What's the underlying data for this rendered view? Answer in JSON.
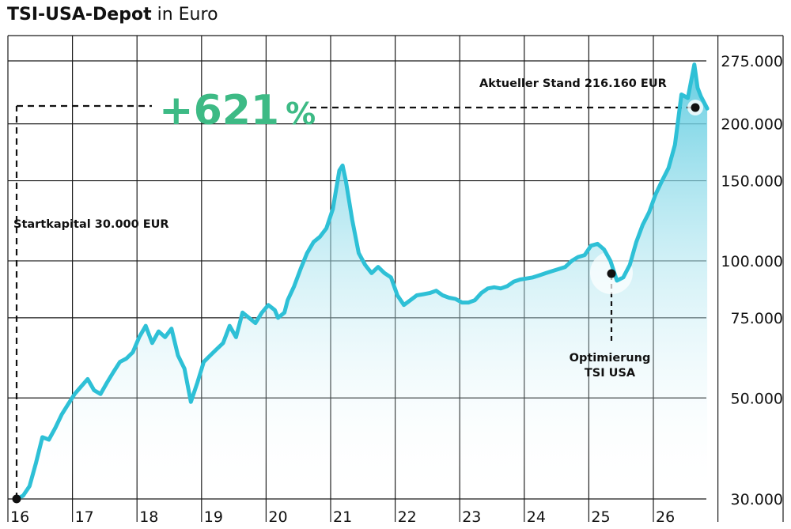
{
  "title": {
    "bold": "TSI-USA-Depot",
    "light": "in Euro"
  },
  "colors": {
    "line": "#2ec0d6",
    "fill_top": "#5ccbe0",
    "highlight": "#3dba85",
    "grid": "#1a1a1a"
  },
  "highlight": {
    "number": "+621",
    "unit": "%"
  },
  "annotations": {
    "start": "Startkapital 30.000 EUR",
    "current": "Aktueller Stand 216.160 EUR",
    "optimization_line1": "Optimierung",
    "optimization_line2": "TSI USA"
  },
  "chart_data": {
    "type": "area",
    "title": "TSI-USA-Depot in Euro",
    "y_scale": "log",
    "ylim": [
      30000,
      275000
    ],
    "y_ticks": [
      30000,
      50000,
      75000,
      100000,
      150000,
      200000,
      275000
    ],
    "y_tick_labels": [
      "30.000",
      "50.000",
      "75.000",
      "100.000",
      "150.000",
      "200.000",
      "275.000"
    ],
    "xlim": [
      2016,
      2026.85
    ],
    "x_ticks": [
      2016,
      2017,
      2018,
      2019,
      2020,
      2021,
      2022,
      2023,
      2024,
      2025,
      2026
    ],
    "x_tick_labels": [
      "16",
      "17",
      "18",
      "19",
      "20",
      "21",
      "22",
      "23",
      "24",
      "25",
      "26"
    ],
    "grid": true,
    "legend": "none",
    "series": [
      {
        "x": [
          2016.0,
          2016.1,
          2016.2,
          2016.3,
          2016.4,
          2016.5,
          2016.6,
          2016.7,
          2016.8,
          2016.9,
          2017.0,
          2017.1,
          2017.2,
          2017.3,
          2017.4,
          2017.5,
          2017.6,
          2017.7,
          2017.8,
          2017.9,
          2018.0,
          2018.1,
          2018.2,
          2018.3,
          2018.4,
          2018.5,
          2018.6,
          2018.7,
          2018.8,
          2018.9,
          2019.0,
          2019.1,
          2019.2,
          2019.3,
          2019.4,
          2019.5,
          2019.6,
          2019.7,
          2019.8,
          2019.9,
          2020.0,
          2020.05,
          2020.15,
          2020.2,
          2020.3,
          2020.4,
          2020.5,
          2020.6,
          2020.7,
          2020.8,
          2020.9,
          2021.0,
          2021.05,
          2021.1,
          2021.2,
          2021.3,
          2021.4,
          2021.5,
          2021.6,
          2021.7,
          2021.8,
          2021.9,
          2022.0,
          2022.1,
          2022.2,
          2022.3,
          2022.4,
          2022.5,
          2022.6,
          2022.7,
          2022.8,
          2022.9,
          2023.0,
          2023.1,
          2023.2,
          2023.3,
          2023.4,
          2023.5,
          2023.6,
          2023.7,
          2023.8,
          2023.9,
          2024.0,
          2024.1,
          2024.2,
          2024.3,
          2024.4,
          2024.5,
          2024.6,
          2024.7,
          2024.8,
          2024.9,
          2025.0,
          2025.1,
          2025.2,
          2025.3,
          2025.4,
          2025.5,
          2025.6,
          2025.7,
          2025.8,
          2025.9,
          2026.0,
          2026.1,
          2026.2,
          2026.3,
          2026.4,
          2026.5,
          2026.55,
          2026.6,
          2026.7
        ],
        "y": [
          30000,
          30500,
          32000,
          36000,
          41000,
          40500,
          43000,
          46000,
          48500,
          51000,
          53000,
          55000,
          52000,
          51000,
          54000,
          57000,
          60000,
          61000,
          63000,
          68000,
          72000,
          66000,
          70000,
          68000,
          71000,
          62000,
          58000,
          49000,
          54000,
          60000,
          62000,
          64000,
          66000,
          72000,
          68000,
          77000,
          75000,
          73000,
          77000,
          80000,
          78000,
          75000,
          77000,
          82000,
          88000,
          96000,
          104000,
          110000,
          113000,
          118000,
          130000,
          158000,
          162000,
          150000,
          123000,
          104000,
          98000,
          94000,
          97000,
          94000,
          92000,
          84000,
          80000,
          82000,
          84000,
          84500,
          85000,
          86000,
          84000,
          83000,
          82500,
          81000,
          81000,
          82000,
          85000,
          87000,
          87500,
          87000,
          88000,
          90000,
          91000,
          91500,
          92000,
          93000,
          94000,
          95000,
          96000,
          97000,
          100000,
          102000,
          103000,
          108000,
          109000,
          106000,
          100000,
          90500,
          92000,
          98000,
          110000,
          120000,
          128000,
          140000,
          150000,
          160000,
          180000,
          232000,
          228000,
          270000,
          240000,
          230000,
          216160
        ]
      }
    ]
  }
}
